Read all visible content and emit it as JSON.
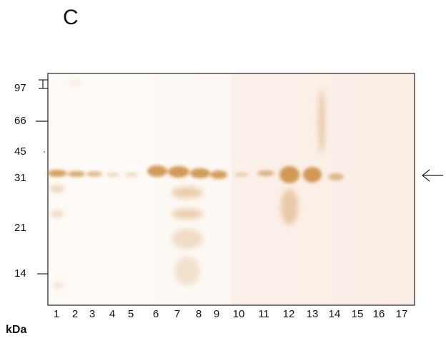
{
  "panel_label": "C",
  "markers": [
    "97",
    "66",
    "45",
    "31",
    "21",
    "14"
  ],
  "unit": "kDa",
  "lanes": [
    "1",
    "2",
    "3",
    "4",
    "5",
    "6",
    "7",
    "8",
    "9",
    "10",
    "11",
    "12",
    "13",
    "14",
    "15",
    "16",
    "17"
  ]
}
